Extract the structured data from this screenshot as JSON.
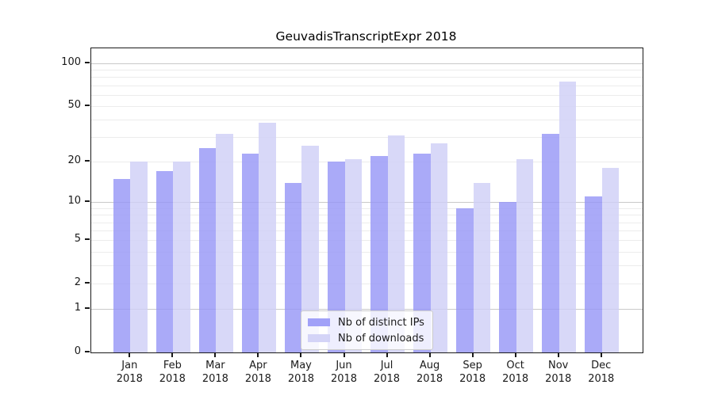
{
  "title": "GeuvadisTranscriptExpr 2018",
  "chart_data": {
    "type": "bar",
    "title": "GeuvadisTranscriptExpr 2018",
    "x_tick_months": [
      "Jan",
      "Feb",
      "Mar",
      "Apr",
      "May",
      "Jun",
      "Jul",
      "Aug",
      "Sep",
      "Oct",
      "Nov",
      "Dec"
    ],
    "x_tick_year": "2018",
    "series": [
      {
        "name": "Nb of distinct IPs",
        "color": "#9797f7",
        "values": [
          15,
          17,
          25,
          23,
          14,
          20,
          22,
          23,
          9,
          10,
          32,
          11
        ]
      },
      {
        "name": "Nb of downloads",
        "color": "#cfcff6",
        "values": [
          20,
          20,
          32,
          38,
          26,
          21,
          31,
          27,
          14,
          21,
          75,
          18
        ]
      }
    ],
    "y_scale": "log1p",
    "y_axis_max": 127.5,
    "y_ticks": [
      0,
      1,
      2,
      5,
      10,
      20,
      50,
      100
    ],
    "y_major_gridlines": [
      1,
      10,
      100
    ],
    "y_minor_gridlines": [
      2,
      3,
      4,
      5,
      6,
      7,
      8,
      9,
      20,
      30,
      40,
      50,
      60,
      70,
      80,
      90
    ],
    "grid": true,
    "legend_position": "lower center"
  },
  "legend": {
    "items": [
      "Nb of distinct IPs",
      "Nb of downloads"
    ]
  },
  "colors": {
    "bar_ips": "#9797f7",
    "bar_downloads": "#cfcff6",
    "major_grid": "#c9c9c9",
    "minor_grid": "#ececec",
    "spine": "#1a1a1a",
    "text": "#1a1a1a",
    "legend_border": "#cccccc"
  }
}
